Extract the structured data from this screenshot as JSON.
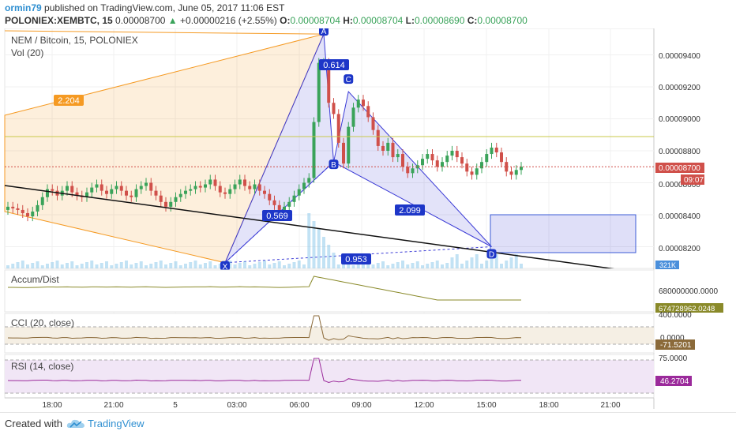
{
  "header": {
    "user": "ormin79",
    "published": " published on TradingView.com, June 05, 2017 11:06 EST",
    "symbol": "POLONIEX:XEMBTC, 15",
    "price": "0.00008700",
    "arrow": "▲",
    "change": "+0.00000216 (+2.55%)",
    "o_label": "O:",
    "o_value": "0.00008704",
    "h_label": "H:",
    "h_value": "0.00008704",
    "l_label": "L:",
    "l_value": "0.00008690",
    "c_label": "C:",
    "c_value": "0.00008700"
  },
  "main": {
    "title": "NEM / Bitcoin, 15, POLONIEX",
    "vol_label": "Vol (20)",
    "price_ticks": [
      "0.00009400",
      "0.00009200",
      "0.00009000",
      "0.00008800",
      "0.00008600",
      "0.00008400",
      "0.00008200"
    ],
    "last_price_badge": "0.00008700",
    "countdown_badge": "09:07",
    "volume_badge": "321K",
    "pattern_points": [
      "X",
      "A",
      "B",
      "C",
      "D"
    ],
    "ratios": [
      "2.204",
      "0.614",
      "0.569",
      "2.099",
      "0.953"
    ]
  },
  "panes": {
    "accum": {
      "title": "Accum/Dist",
      "tick": "680000000.0000",
      "badge": "674728962.0248"
    },
    "cci": {
      "title": "CCI (20, close)",
      "tick_top": "400.0000",
      "tick_mid": "0.0000",
      "badge": "-71.5201"
    },
    "rsi": {
      "title": "RSI (14, close)",
      "tick_top": "75.0000",
      "badge": "46.2704"
    }
  },
  "time_axis": [
    "18:00",
    "21:00",
    "5",
    "03:00",
    "06:00",
    "09:00",
    "12:00",
    "15:00",
    "18:00",
    "21:00"
  ],
  "colors": {
    "up": "#3aa35a",
    "down": "#d0504a",
    "harmonic": "#3b3bd6",
    "fib_orange": "#f59a23",
    "accum_line": "#8a8a2a",
    "cci_line": "#8b6a3a",
    "rsi_line": "#9b2a9b"
  },
  "footer": {
    "created": "Created with",
    "brand": "TradingView"
  },
  "chart_data": {
    "type": "candlestick",
    "title": "NEM / Bitcoin, 15, POLONIEX",
    "y_range": [
      8.1e-05,
      9.53e-05
    ],
    "last_price": 8.7e-05,
    "closes": [
      8.45e-05,
      8.44e-05,
      8.43e-05,
      8.41e-05,
      8.39e-05,
      8.42e-05,
      8.46e-05,
      8.51e-05,
      8.56e-05,
      8.55e-05,
      8.52e-05,
      8.55e-05,
      8.58e-05,
      8.54e-05,
      8.52e-05,
      8.51e-05,
      8.54e-05,
      8.57e-05,
      8.59e-05,
      8.55e-05,
      8.53e-05,
      8.56e-05,
      8.58e-05,
      8.55e-05,
      8.52e-05,
      8.51e-05,
      8.56e-05,
      8.58e-05,
      8.6e-05,
      8.55e-05,
      8.52e-05,
      8.48e-05,
      8.45e-05,
      8.48e-05,
      8.51e-05,
      8.53e-05,
      8.55e-05,
      8.56e-05,
      8.58e-05,
      8.57e-05,
      8.59e-05,
      8.62e-05,
      8.58e-05,
      8.54e-05,
      8.53e-05,
      8.56e-05,
      8.59e-05,
      8.62e-05,
      8.58e-05,
      8.56e-05,
      8.59e-05,
      8.55e-05,
      8.53e-05,
      8.49e-05,
      8.46e-05,
      8.43e-05,
      8.45e-05,
      8.48e-05,
      8.52e-05,
      8.56e-05,
      8.6e-05,
      8.63e-05,
      8.98e-05,
      9.35e-05,
      9.35e-05,
      9.1e-05,
      9.03e-05,
      8.85e-05,
      8.72e-05,
      8.95e-05,
      9.07e-05,
      9.12e-05,
      9.08e-05,
      9.01e-05,
      8.93e-05,
      8.83e-05,
      8.8e-05,
      8.85e-05,
      8.76e-05,
      8.78e-05,
      8.7e-05,
      8.66e-05,
      8.69e-05,
      8.71e-05,
      8.75e-05,
      8.78e-05,
      8.74e-05,
      8.7e-05,
      8.73e-05,
      8.77e-05,
      8.8e-05,
      8.76e-05,
      8.72e-05,
      8.67e-05,
      8.65e-05,
      8.69e-05,
      8.73e-05,
      8.78e-05,
      8.82e-05,
      8.79e-05,
      8.73e-05,
      8.67e-05,
      8.65e-05,
      8.68e-05,
      8.7e-05
    ],
    "harmonic": {
      "X": 8.1e-05,
      "A": 9.53e-05,
      "B": 8.73e-05,
      "C": 9.17e-05,
      "D": 8.2e-05,
      "ratios": {
        "XB": 0.569,
        "AC": 0.614,
        "BD": 2.099,
        "XD": 0.953
      }
    },
    "indicators": {
      "accum_dist_last": 674728962.0248,
      "cci_last": -71.5201,
      "rsi_last": 46.2704
    },
    "x_ticks": [
      "18:00",
      "21:00",
      "5",
      "03:00",
      "06:00",
      "09:00",
      "12:00",
      "15:00",
      "18:00",
      "21:00"
    ]
  }
}
